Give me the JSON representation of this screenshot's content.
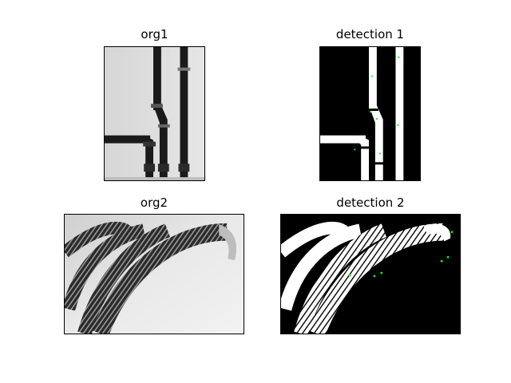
{
  "figure": {
    "panels": [
      {
        "title": "org1"
      },
      {
        "title": "detection 1"
      },
      {
        "title": "org2"
      },
      {
        "title": "detection 2"
      }
    ],
    "colors": {
      "background": "#ffffff",
      "frame": "#000000",
      "wall_light": "#dcdcdc",
      "pipe_dark": "#1a1a1a",
      "mask_black": "#000000",
      "mask_white": "#ffffff",
      "keypoint_green": "#00ff00"
    }
  }
}
